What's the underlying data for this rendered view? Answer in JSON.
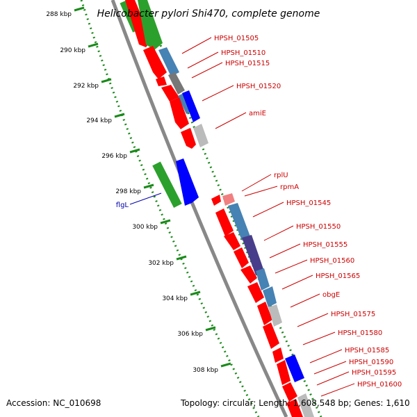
{
  "title": "Helicobacter pylori Shi470, complete genome",
  "accession": "Accession: NC_010698",
  "topology": "Topology: circular; Length: 1,608,548 bp; Genes: 1,610",
  "colors": {
    "backbone": "#888888",
    "dotted": "#1a8a1a",
    "red": "#ff0000",
    "green": "#2ca02c",
    "blue": "#0000ff",
    "steel": "#4682b4",
    "grey": "#777777",
    "lightgrey": "#bbbbbb",
    "darkblue": "#483d8b",
    "pink": "#f08080",
    "label_red": "#cc0000",
    "label_blue": "#0000aa"
  },
  "ticks": [
    {
      "label": "288 kbp"
    },
    {
      "label": "290 kbp"
    },
    {
      "label": "292 kbp"
    },
    {
      "label": "294 kbp"
    },
    {
      "label": "296 kbp"
    },
    {
      "label": "298 kbp"
    },
    {
      "label": "300 kbp"
    },
    {
      "label": "302 kbp"
    },
    {
      "label": "304 kbp"
    },
    {
      "label": "306 kbp"
    },
    {
      "label": "308 kbp"
    }
  ],
  "gene_labels": [
    {
      "text": "HPSH_01505",
      "strand": "plus"
    },
    {
      "text": "HPSH_01510",
      "strand": "plus"
    },
    {
      "text": "HPSH_01515",
      "strand": "plus"
    },
    {
      "text": "HPSH_01520",
      "strand": "plus"
    },
    {
      "text": "amiE",
      "strand": "plus"
    },
    {
      "text": "rplU",
      "strand": "plus"
    },
    {
      "text": "rpmA",
      "strand": "plus"
    },
    {
      "text": "HPSH_01545",
      "strand": "plus"
    },
    {
      "text": "HPSH_01550",
      "strand": "plus"
    },
    {
      "text": "HPSH_01555",
      "strand": "plus"
    },
    {
      "text": "HPSH_01560",
      "strand": "plus"
    },
    {
      "text": "HPSH_01565",
      "strand": "plus"
    },
    {
      "text": "obgE",
      "strand": "plus"
    },
    {
      "text": "HPSH_01575",
      "strand": "plus"
    },
    {
      "text": "HPSH_01580",
      "strand": "plus"
    },
    {
      "text": "HPSH_01585",
      "strand": "plus"
    },
    {
      "text": "HPSH_01590",
      "strand": "plus"
    },
    {
      "text": "HPSH_01595",
      "strand": "plus"
    },
    {
      "text": "HPSH_01600",
      "strand": "plus"
    },
    {
      "text": "flgL",
      "strand": "minus"
    }
  ]
}
